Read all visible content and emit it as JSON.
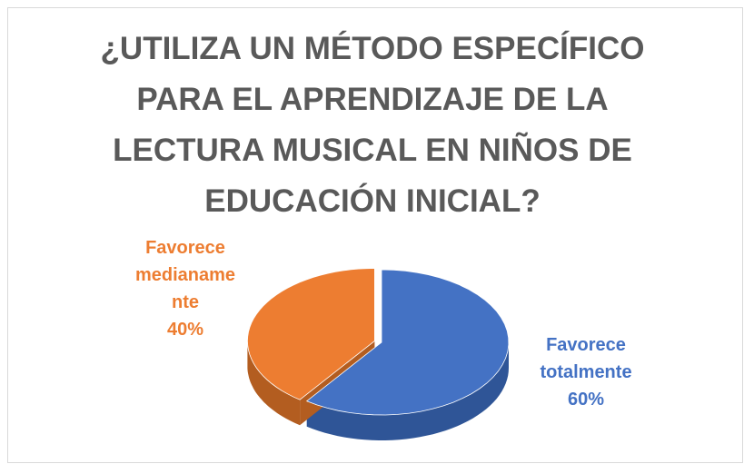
{
  "chart_data": {
    "type": "pie3d",
    "title": "¿UTILIZA UN MÉTODO ESPECÍFICO PARA EL APRENDIZAJE DE LA LECTURA MUSICAL EN NIÑOS DE EDUCACIÓN INICIAL?",
    "categories": [
      "Favorece totalmente",
      "Favorece medianamente"
    ],
    "values": [
      60,
      40
    ],
    "value_labels": [
      "60%",
      "40%"
    ],
    "colors": [
      "#4472c4",
      "#ed7d31"
    ],
    "side_colors": [
      "#2f5597",
      "#b35d20"
    ]
  }
}
